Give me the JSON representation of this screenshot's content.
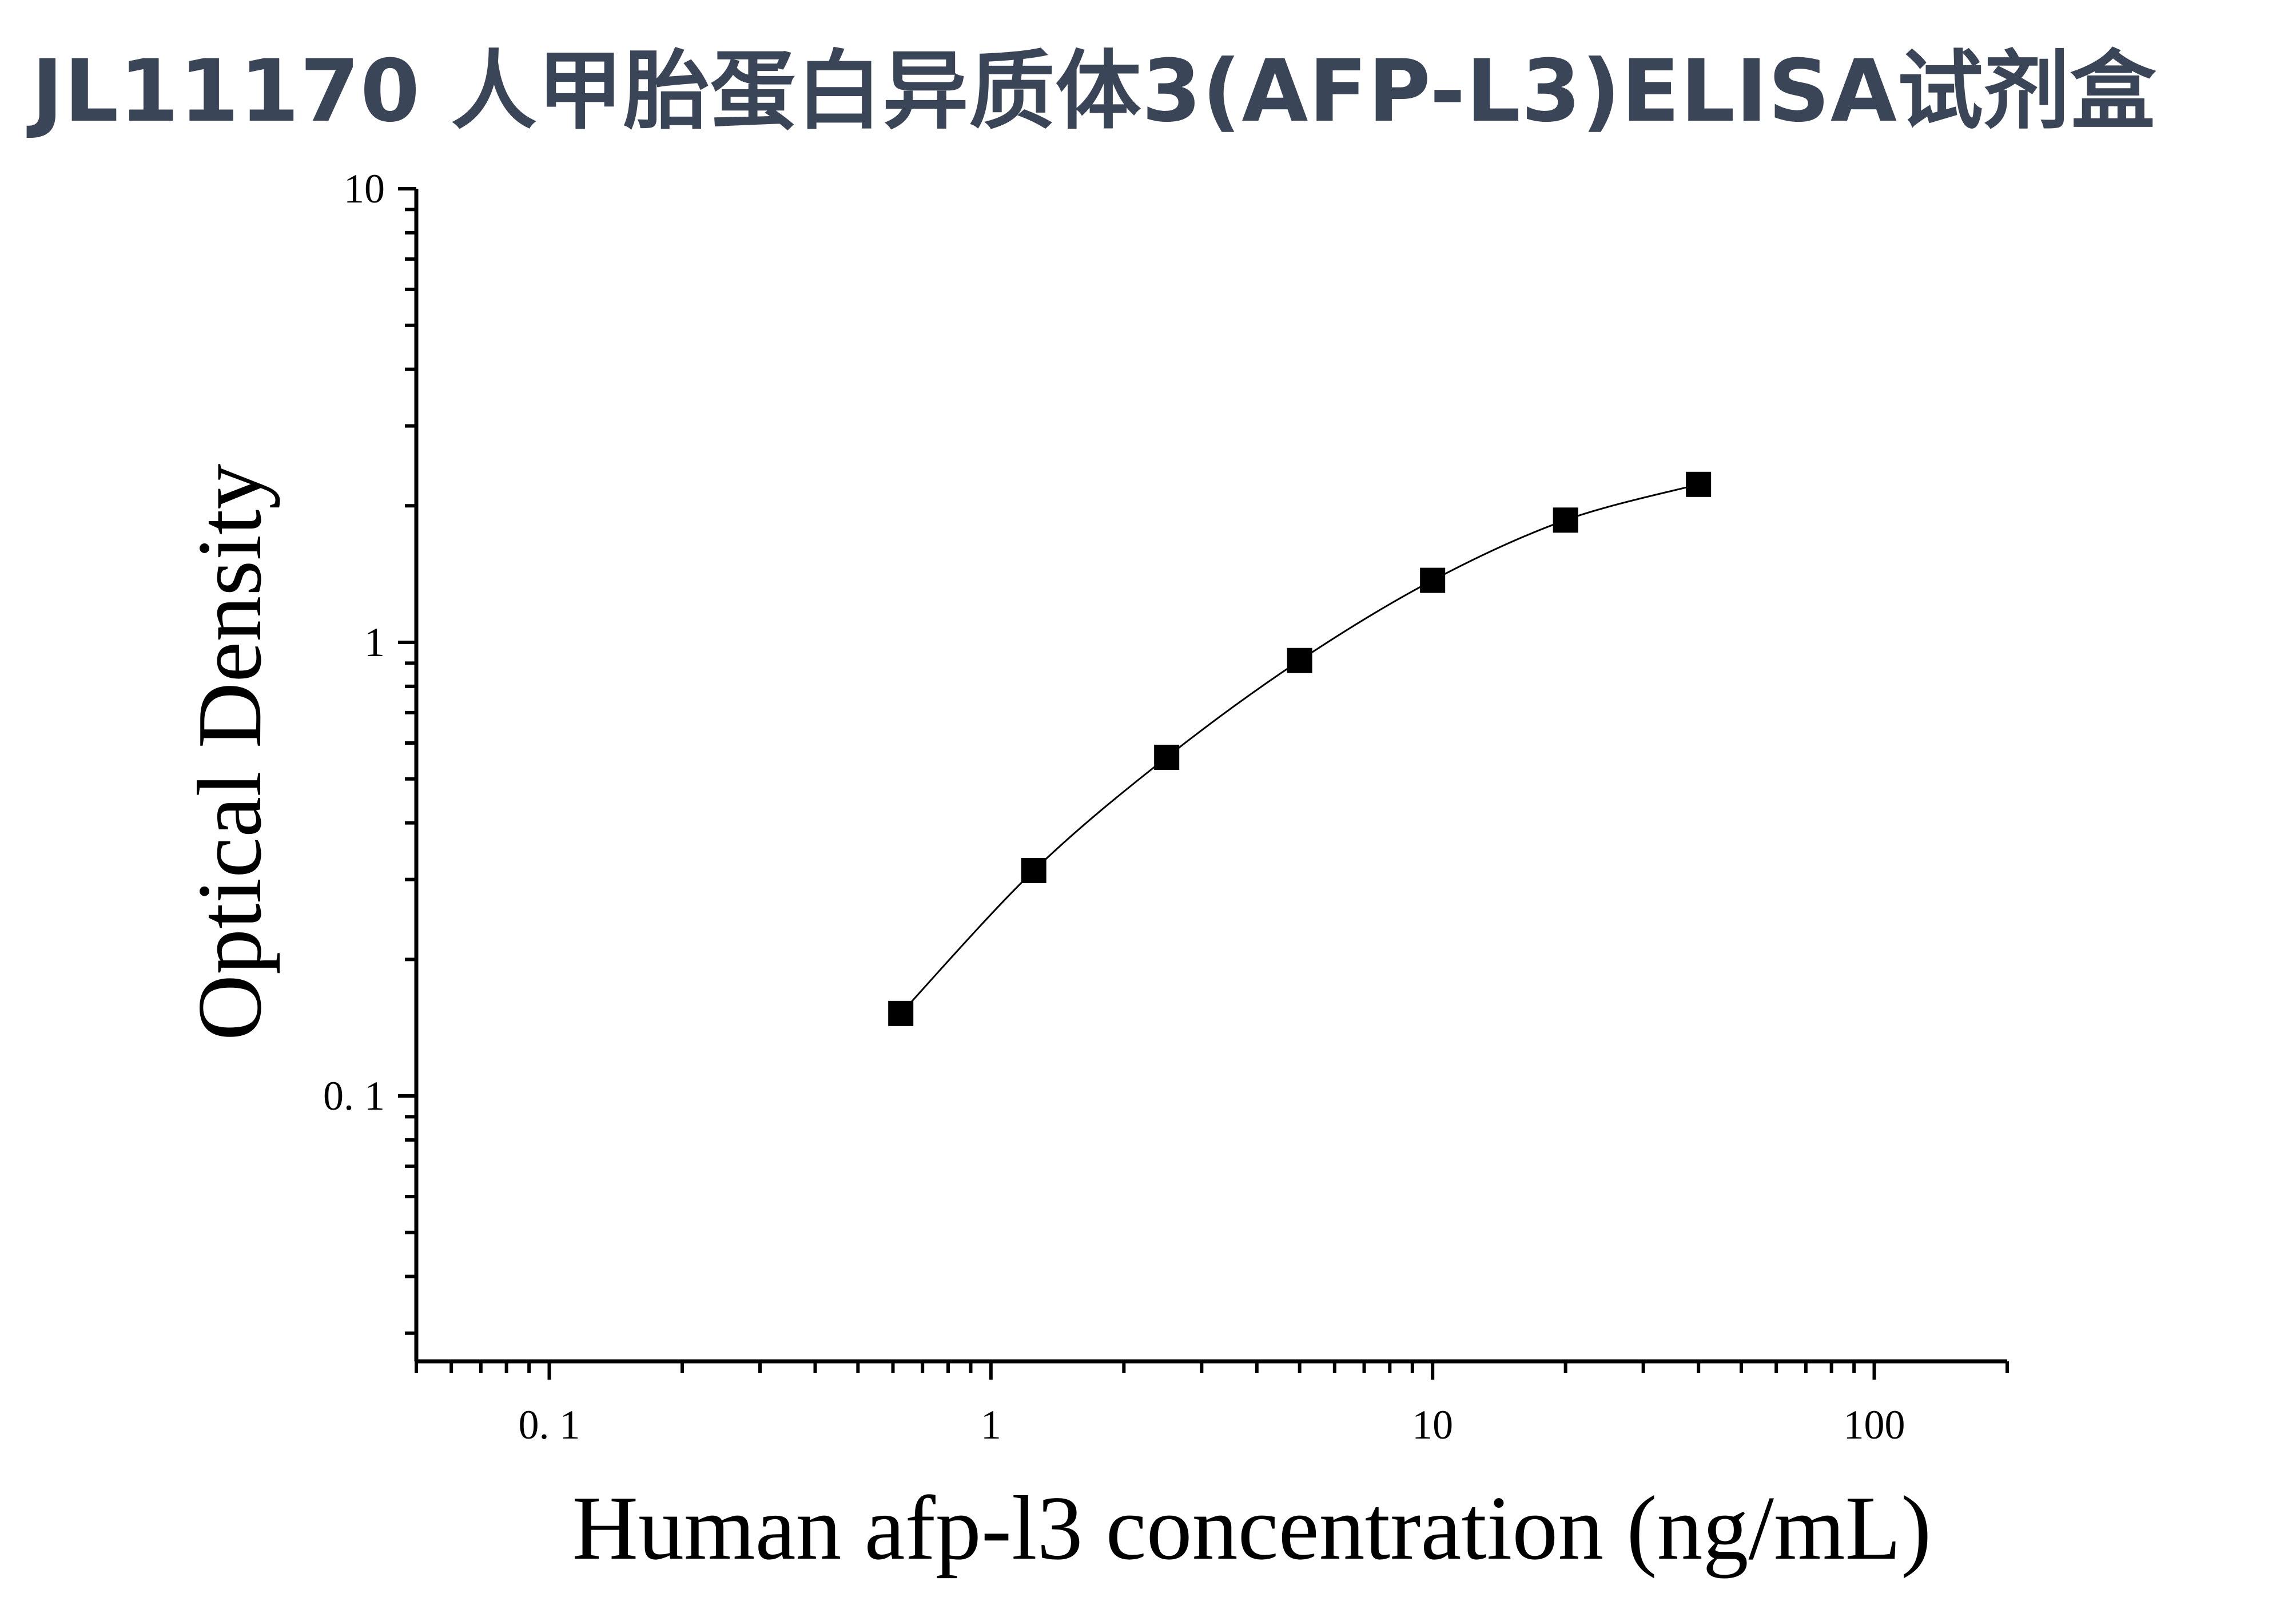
{
  "chart_data": {
    "type": "scatter",
    "title": "JL11170 人甲胎蛋白异质体3(AFP-L3)ELISA试剂盒",
    "xlabel": "Human afp-l3 concentration (ng/mL)",
    "ylabel": "Optical Density",
    "xscale": "log",
    "yscale": "log",
    "xlim": [
      0.05,
      200
    ],
    "ylim": [
      0.026,
      10
    ],
    "x_ticks": [
      {
        "value": 0.1,
        "label": "0. 1"
      },
      {
        "value": 1,
        "label": "1"
      },
      {
        "value": 10,
        "label": "10"
      },
      {
        "value": 100,
        "label": "100"
      }
    ],
    "y_ticks": [
      {
        "value": 10,
        "label": "10"
      },
      {
        "value": 1,
        "label": "1"
      },
      {
        "value": 0.1,
        "label": "0. 1"
      }
    ],
    "grid": false,
    "legend": "none",
    "fit_curve": true,
    "marker": "square",
    "marker_color": "#000000",
    "title_color": "#3b4558",
    "points": [
      {
        "x": 0.625,
        "y": 0.152
      },
      {
        "x": 1.25,
        "y": 0.314
      },
      {
        "x": 2.5,
        "y": 0.558
      },
      {
        "x": 5,
        "y": 0.912
      },
      {
        "x": 10,
        "y": 1.37
      },
      {
        "x": 20,
        "y": 1.86
      },
      {
        "x": 40,
        "y": 2.23
      }
    ]
  }
}
